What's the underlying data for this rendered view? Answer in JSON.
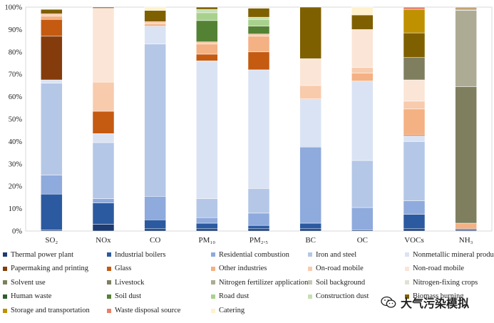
{
  "chart_data": {
    "type": "bar",
    "stacked": true,
    "percent": true,
    "title": "",
    "xlabel": "",
    "ylabel": "",
    "ylim": [
      0,
      100
    ],
    "y_ticks": [
      "0%",
      "10%",
      "20%",
      "30%",
      "40%",
      "50%",
      "60%",
      "70%",
      "80%",
      "90%",
      "100%"
    ],
    "categories": [
      "SO₂",
      "NOx",
      "CO",
      "PM₁₀",
      "PM₂.₅",
      "BC",
      "OC",
      "VOCs",
      "NH₃"
    ],
    "legend_position": "bottom",
    "series": [
      {
        "name": "Thermal power plant",
        "color": "#1f3b73",
        "values": [
          0.5,
          3,
          1,
          1,
          1,
          1,
          0.5,
          1,
          0.5
        ]
      },
      {
        "name": "Industrial boilers",
        "color": "#2c5aa0",
        "values": [
          16,
          9.5,
          4,
          2.5,
          1.5,
          2.5,
          0,
          6.5,
          0.5
        ]
      },
      {
        "name": "Residential combustion",
        "color": "#8faadc",
        "values": [
          8.5,
          2,
          10.5,
          2.5,
          5.5,
          34,
          10,
          6,
          0
        ]
      },
      {
        "name": "Iron and steel",
        "color": "#b4c7e7",
        "values": [
          41,
          25,
          68,
          8.5,
          11,
          0,
          21,
          26.5,
          0
        ]
      },
      {
        "name": "Nonmetallic mineral products",
        "color": "#dae3f3",
        "values": [
          1.5,
          4,
          8,
          61.5,
          53,
          21.5,
          35.5,
          2.5,
          0
        ]
      },
      {
        "name": "Papermaking and printing",
        "color": "#843c0c",
        "values": [
          19.5,
          0,
          0,
          0,
          0,
          0,
          0,
          0,
          0
        ]
      },
      {
        "name": "Glass",
        "color": "#c55a11",
        "values": [
          7.5,
          10,
          0,
          3,
          8,
          0,
          0,
          0.5,
          0
        ]
      },
      {
        "name": "Other industries",
        "color": "#f4b183",
        "values": [
          1.5,
          0,
          1,
          4.5,
          7,
          0,
          3.5,
          11.5,
          2.5
        ]
      },
      {
        "name": "On-road mobile",
        "color": "#f8cbad",
        "values": [
          1,
          13,
          1,
          1,
          1,
          6,
          2.5,
          3.5,
          0
        ]
      },
      {
        "name": "Non-road mobile",
        "color": "#fbe5d6",
        "values": [
          0,
          33,
          0,
          0,
          0,
          12,
          17,
          9.5,
          0
        ]
      },
      {
        "name": "Solvent use",
        "color": "#7f7f5f",
        "values": [
          0,
          0,
          0,
          0,
          0,
          0,
          0,
          10,
          0
        ]
      },
      {
        "name": "Livestock",
        "color": "#7f7f5f",
        "values": [
          0,
          0,
          0,
          0,
          0,
          0,
          0,
          0,
          61
        ]
      },
      {
        "name": "Nitrogen fertilizer application",
        "color": "#aeab94",
        "values": [
          0,
          0,
          0,
          0,
          0,
          0,
          0,
          0,
          34
        ]
      },
      {
        "name": "Soil background",
        "color": "#c9c7b5",
        "values": [
          0,
          0,
          0,
          0,
          0,
          0,
          0,
          0,
          0.5
        ]
      },
      {
        "name": "Nitrogen-fixing crops",
        "color": "#e2e0d3",
        "values": [
          0,
          0,
          0,
          0,
          0,
          0,
          0,
          0,
          0
        ]
      },
      {
        "name": "Human waste",
        "color": "#2e5e2e",
        "values": [
          0,
          0,
          0,
          0,
          0,
          0,
          0,
          0,
          0
        ]
      },
      {
        "name": "Soil dust",
        "color": "#548235",
        "values": [
          0,
          0,
          0,
          9.5,
          3.5,
          0,
          0,
          0,
          0
        ]
      },
      {
        "name": "Road dust",
        "color": "#a9d18e",
        "values": [
          0,
          0,
          0,
          3.5,
          3,
          0,
          0,
          0,
          0
        ]
      },
      {
        "name": "Construction dust",
        "color": "#c5e0b4",
        "values": [
          0,
          0,
          0,
          1.5,
          1,
          0,
          0,
          0,
          0
        ]
      },
      {
        "name": "Biomass burning",
        "color": "#7f6000",
        "values": [
          2,
          0.5,
          5,
          1,
          4,
          23,
          6.5,
          11,
          0.5
        ]
      },
      {
        "name": "Storage and transportation",
        "color": "#bf9000",
        "values": [
          0,
          0,
          0,
          0,
          0,
          0,
          0,
          10.5,
          0
        ]
      },
      {
        "name": "Waste disposal source",
        "color": "#e8806a",
        "values": [
          0,
          0,
          0,
          0,
          0,
          0,
          0,
          1,
          0.5
        ]
      },
      {
        "name": "Catering",
        "color": "#fff2cc",
        "values": [
          0,
          0,
          1.5,
          0,
          0,
          0,
          3.5,
          0,
          0
        ]
      }
    ]
  },
  "watermark": {
    "text": "大气污染模拟",
    "icon": "wechat-icon"
  }
}
